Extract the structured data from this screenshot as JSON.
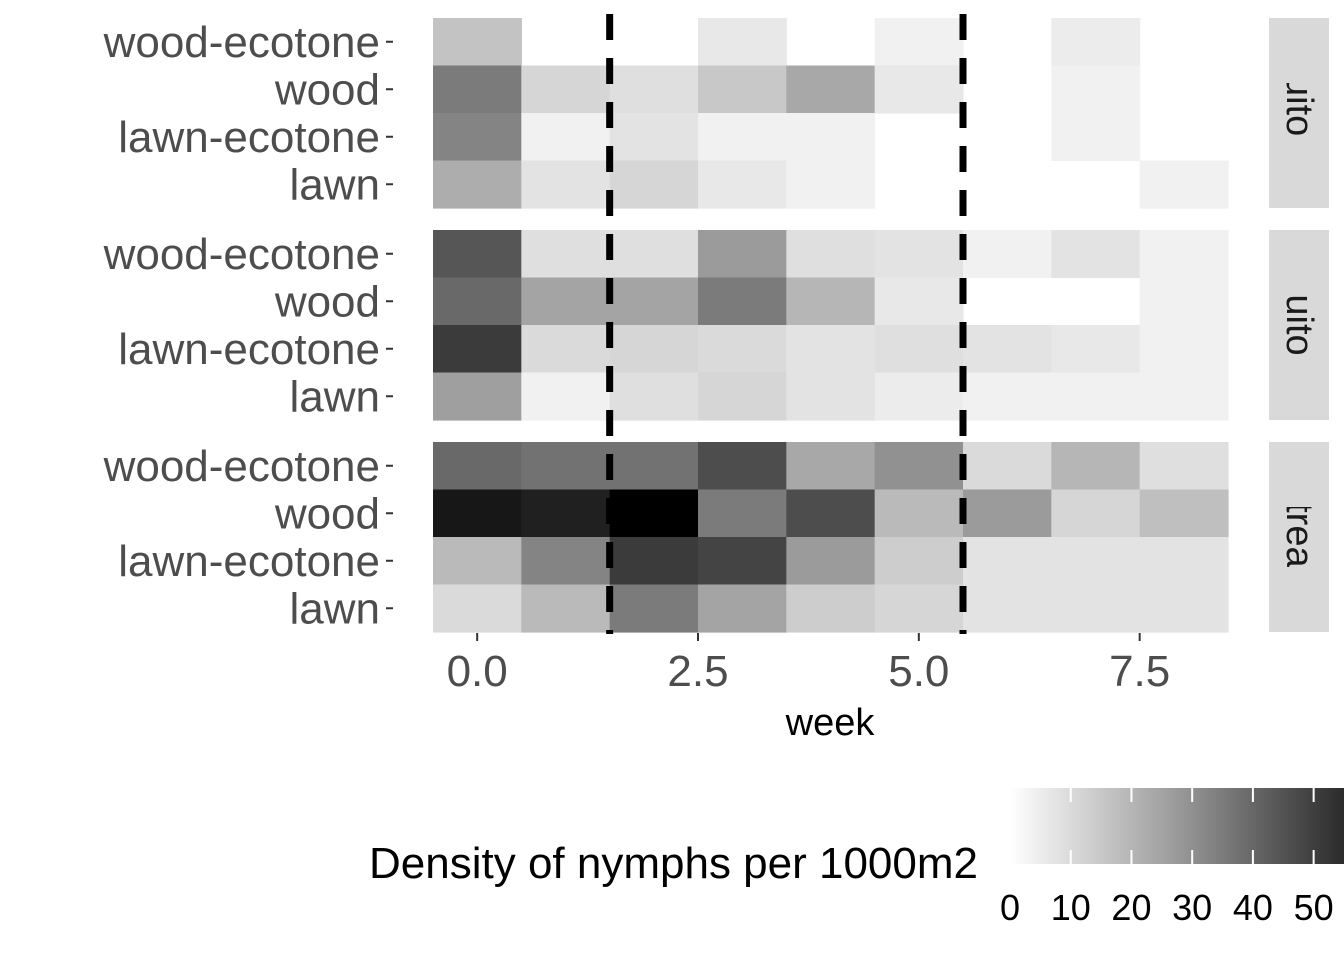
{
  "chart_data": {
    "type": "heatmap",
    "xlabel": "week",
    "x_ticks": [
      "0.0",
      "2.5",
      "5.0",
      "7.5"
    ],
    "x_tick_values": [
      0,
      2.5,
      5,
      7.5
    ],
    "xlim": [
      -0.5,
      8.5
    ],
    "weeks": [
      0,
      1,
      2,
      3,
      4,
      5,
      6,
      7,
      8
    ],
    "categories": [
      "wood-ecotone",
      "wood",
      "lawn-ecotone",
      "lawn"
    ],
    "reference_lines": [
      1.5,
      5.5
    ],
    "legend": {
      "title": "Density of nymphs per 1000m2",
      "ticks": [
        "0",
        "10",
        "20",
        "30",
        "40",
        "50"
      ],
      "tick_values": [
        0,
        10,
        20,
        30,
        40,
        50
      ],
      "range": [
        0,
        55
      ],
      "placement": "bottom"
    },
    "panels": [
      {
        "name": "Mosquito & Tick",
        "label_shown": "osquito & Ti",
        "rows": [
          {
            "category": "wood-ecotone",
            "values": [
              12,
              null,
              null,
              4,
              null,
              2,
              null,
              3,
              null
            ]
          },
          {
            "category": "wood",
            "values": [
              28,
              8,
              6,
              11,
              18,
              4,
              null,
              2,
              null
            ]
          },
          {
            "category": "lawn-ecotone",
            "values": [
              26,
              2,
              5,
              2,
              2,
              null,
              null,
              2,
              null
            ]
          },
          {
            "category": "lawn",
            "values": [
              17,
              5,
              8,
              4,
              2,
              null,
              null,
              null,
              2
            ]
          }
        ]
      },
      {
        "name": "Mosquito Only",
        "label_shown": "osquito On",
        "rows": [
          {
            "category": "wood-ecotone",
            "values": [
              36,
              6,
              6,
              21,
              6,
              5,
              2,
              5,
              2
            ]
          },
          {
            "category": "wood",
            "values": [
              32,
              19,
              19,
              28,
              15,
              4,
              null,
              null,
              2
            ]
          },
          {
            "category": "lawn-ecotone",
            "values": [
              42,
              7,
              8,
              7,
              5,
              6,
              5,
              4,
              2
            ]
          },
          {
            "category": "lawn",
            "values": [
              20,
              2,
              6,
              8,
              5,
              3,
              2,
              2,
              2
            ]
          }
        ]
      },
      {
        "name": "Untreated",
        "label_shown": "Untreated",
        "rows": [
          {
            "category": "wood-ecotone",
            "values": [
              32,
              30,
              30,
              38,
              18,
              23,
              7,
              15,
              6
            ]
          },
          {
            "category": "wood",
            "values": [
              50,
              48,
              55,
              28,
              38,
              14,
              21,
              8,
              13
            ]
          },
          {
            "category": "lawn-ecotone",
            "values": [
              14,
              26,
              42,
              40,
              21,
              10,
              5,
              5,
              5
            ]
          },
          {
            "category": "lawn",
            "values": [
              7,
              14,
              28,
              19,
              10,
              8,
              5,
              5,
              5
            ]
          }
        ]
      }
    ]
  }
}
